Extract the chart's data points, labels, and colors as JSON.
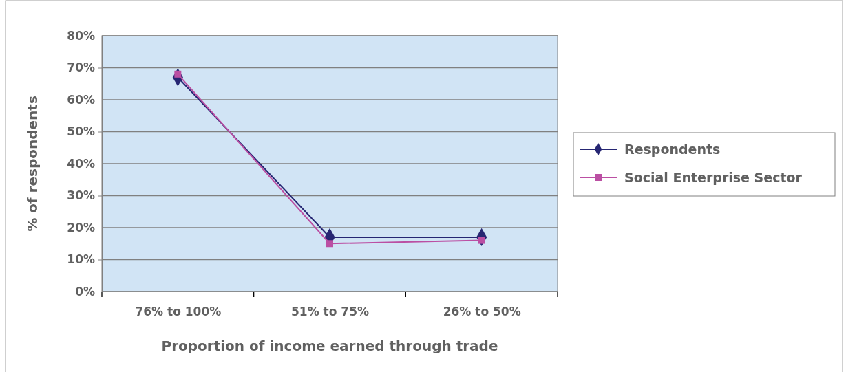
{
  "chart_data": {
    "type": "line",
    "xlabel": "Proportion of income earned through trade",
    "ylabel": "% of respondents",
    "categories": [
      "76%  to 100%",
      "51%  to 75%",
      "26%  to 50%"
    ],
    "series": [
      {
        "name": "Respondents",
        "color": "#262673",
        "values": [
          67,
          17,
          17
        ],
        "marker": "diamond"
      },
      {
        "name": "Social Enterprise Sector",
        "color": "#bb4fa3",
        "values": [
          68,
          15,
          16
        ],
        "marker": "square"
      }
    ],
    "ylim": [
      0,
      80
    ],
    "yticks": [
      {
        "value": 0,
        "label": "0%"
      },
      {
        "value": 10,
        "label": "10%"
      },
      {
        "value": 20,
        "label": "20%"
      },
      {
        "value": 30,
        "label": "30%"
      },
      {
        "value": 40,
        "label": "40%"
      },
      {
        "value": 50,
        "label": "50%"
      },
      {
        "value": 60,
        "label": "60%"
      },
      {
        "value": 70,
        "label": "70%"
      },
      {
        "value": 80,
        "label": "80%"
      }
    ],
    "grid": "y",
    "legend": "right",
    "line_style": "solid"
  }
}
